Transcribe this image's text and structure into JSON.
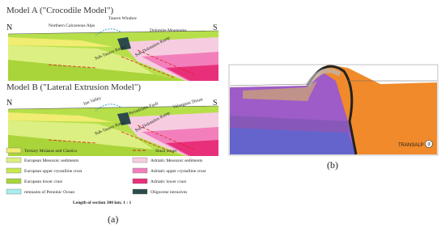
{
  "panel_a": {
    "model_a": {
      "title": "Model A (\"Crocodile Model\")",
      "north": "N",
      "south": "S",
      "labels": [
        "Tauern Window",
        "Northern Calcareous Alps",
        "Dolomite Mountains",
        "Sub-Tauern Ramp",
        "Sub-Dolomites Ramp"
      ]
    },
    "model_b": {
      "title": "Model B (\"Lateral Extrusion Model\")",
      "north": "N",
      "south": "S",
      "labels": [
        "Inn Valley",
        "Periadriatic Fault",
        "Valsugana Thrust",
        "Sub-Tauern Ramp",
        "Sub-Dolomites Ramp"
      ]
    },
    "legend": [
      "Tertiary Molasse and Clastics",
      "Shear zones",
      "European Mesozoic sediments",
      "Adriatic Mesozoic sediments",
      "European upper crystalline crust",
      "Adriatic upper crystalline crust",
      "European lower crust",
      "Adriatic lower crust",
      "remnants of Penninic Ocean",
      "Oligocene intrusives"
    ],
    "scale_note": "Length of section 300 km; 1 : 1",
    "caption": "(a)"
  },
  "panel_b": {
    "source": "TRANSALP",
    "badge": "d",
    "caption": "(b)"
  }
}
